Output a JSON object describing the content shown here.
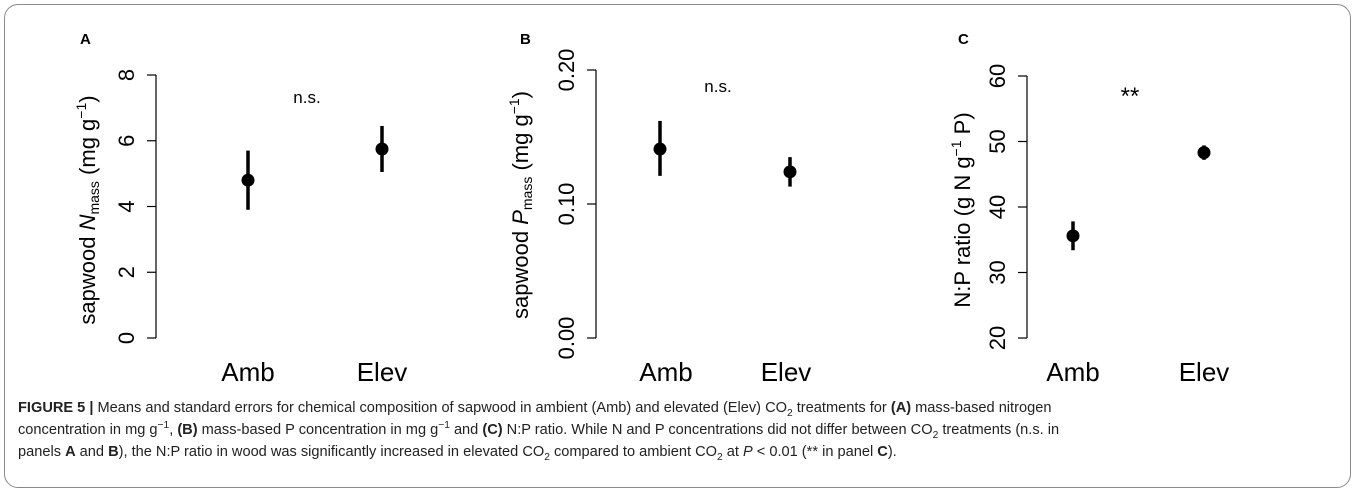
{
  "chart_data": [
    {
      "type": "scatter",
      "panel_label": "A",
      "categories": [
        "Amb",
        "Elev"
      ],
      "values": [
        4.8,
        5.75
      ],
      "error_low": [
        3.9,
        5.05
      ],
      "error_high": [
        5.7,
        6.45
      ],
      "annotation": "n.s.",
      "ylabel": "sapwood",
      "ylabel_var": "N",
      "ylabel_sub": "mass",
      "ylabel_unit": "(mg g",
      "ylabel_sup": "−1",
      "ylabel_close": ")",
      "ylim": [
        0,
        8
      ],
      "yticks": [
        "0",
        "2",
        "4",
        "6",
        "8"
      ],
      "yticks_values": [
        0,
        2,
        4,
        6,
        8
      ],
      "grid": false,
      "marker_color": "#000000"
    },
    {
      "type": "scatter",
      "panel_label": "B",
      "categories": [
        "Amb",
        "Elev"
      ],
      "values": [
        0.141,
        0.124
      ],
      "error_low": [
        0.121,
        0.113
      ],
      "error_high": [
        0.162,
        0.135
      ],
      "annotation": "n.s.",
      "ylabel": "sapwood",
      "ylabel_var": "P",
      "ylabel_sub": "mass",
      "ylabel_unit": "(mg g",
      "ylabel_sup": "−1",
      "ylabel_close": ")",
      "ylim": [
        0,
        0.2
      ],
      "yticks": [
        "0.00",
        "0.10",
        "0.20"
      ],
      "yticks_values": [
        0,
        0.1,
        0.2
      ],
      "grid": false,
      "marker_color": "#000000"
    },
    {
      "type": "scatter",
      "panel_label": "C",
      "categories": [
        "Amb",
        "Elev"
      ],
      "values": [
        35.6,
        48.3
      ],
      "error_low": [
        33.4,
        47.2
      ],
      "error_high": [
        37.8,
        49.4
      ],
      "annotation": "**",
      "ylabel": "N:P ratio",
      "ylabel_unit": "(g N g",
      "ylabel_sup": "−1",
      "ylabel_close": "P)",
      "ylim": [
        20,
        60
      ],
      "yticks": [
        "20",
        "30",
        "40",
        "50",
        "60"
      ],
      "yticks_values": [
        20,
        30,
        40,
        50,
        60
      ],
      "grid": false,
      "marker_color": "#000000"
    }
  ],
  "caption": {
    "figure_label": "FIGURE 5 |",
    "line1_a": "Means and standard errors for chemical composition of sapwood in ambient (Amb) and elevated (Elev) CO",
    "line1_b": " treatments for ",
    "line1_c": "(A)",
    "line1_d": " mass-based nitrogen",
    "line2_a": "concentration in mg g",
    "line2_b": ", ",
    "line2_c": "(B)",
    "line2_d": " mass-based P concentration in mg g",
    "line2_e": " and ",
    "line2_f": "(C)",
    "line2_g": " N:P ratio. While N and P concentrations did not differ between CO",
    "line2_h": " treatments (n.s. in",
    "line3_a": "panels ",
    "line3_b": "A",
    "line3_c": " and ",
    "line3_d": "B",
    "line3_e": "), the N:P ratio in wood was significantly increased in elevated CO",
    "line3_f": " compared to ambient CO",
    "line3_g": " at ",
    "line3_h": "P",
    "line3_i": " < 0.01 (** in panel ",
    "line3_j": "C",
    "line3_k": ").",
    "sub2": "2",
    "sup_neg1": "−1"
  }
}
